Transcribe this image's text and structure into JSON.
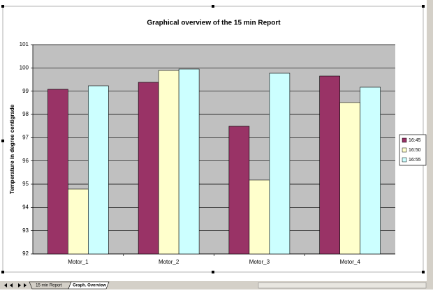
{
  "chart_data": {
    "type": "bar",
    "title": "Graphical overview of the 15 min Report",
    "y_label": "Temperature in degree centigrade",
    "categories": [
      "Motor_1",
      "Motor_2",
      "Motor_3",
      "Motor_4"
    ],
    "series": [
      {
        "name": "16:45",
        "color": "#993366",
        "values": [
          99.08,
          99.38,
          97.49,
          99.65
        ]
      },
      {
        "name": "16:50",
        "color": "#ffffcc",
        "values": [
          94.79,
          99.89,
          95.18,
          98.51
        ]
      },
      {
        "name": "16:55",
        "color": "#ccffff",
        "values": [
          99.23,
          99.95,
          99.77,
          99.17
        ]
      }
    ],
    "ylim": [
      92,
      101
    ],
    "yticks": [
      92,
      93,
      94,
      95,
      96,
      97,
      98,
      99,
      100,
      101
    ],
    "grid": true,
    "legend": "right",
    "plot_background": "#c0c0c0"
  },
  "sheet_tabs": [
    "15 min Report",
    "Graph. Overview"
  ]
}
